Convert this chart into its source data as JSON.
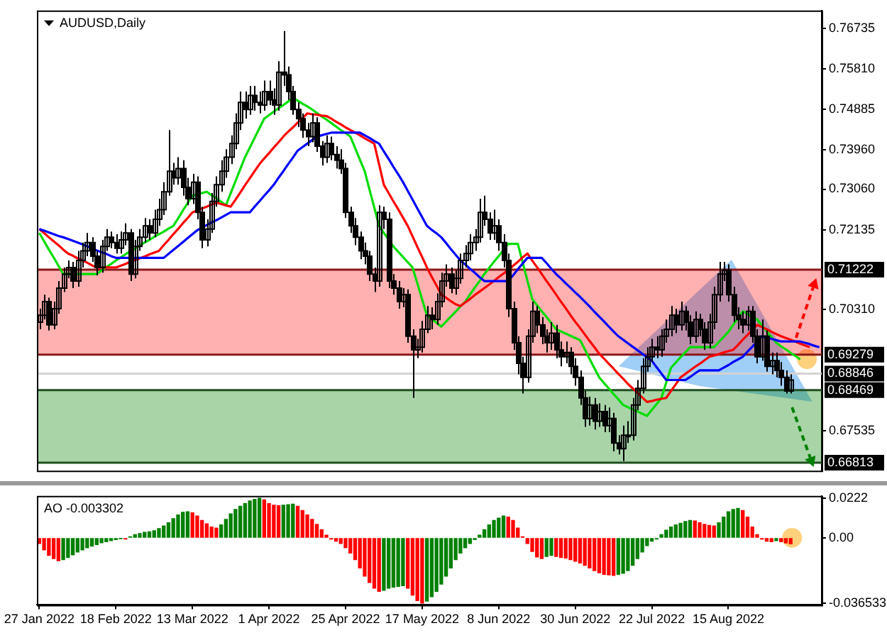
{
  "chart_data": [
    {
      "type": "candlestick",
      "title": "AUDUSD,Daily",
      "categories": [
        null,
        null,
        null,
        null,
        null,
        null,
        null,
        null,
        null,
        null,
        null,
        null,
        null,
        null,
        null,
        null,
        null,
        null,
        null,
        null,
        null,
        null,
        null,
        null,
        null,
        null,
        null,
        null,
        null,
        null,
        null,
        null,
        null,
        null,
        null,
        null,
        null,
        null,
        null,
        null,
        null,
        null,
        null,
        null,
        null,
        null,
        null,
        null,
        null,
        null,
        null,
        null,
        null,
        null,
        null,
        null,
        null,
        null,
        null,
        null,
        null,
        null,
        null,
        null,
        null,
        null,
        null,
        null,
        null,
        null,
        null,
        null,
        null,
        null,
        null,
        null,
        null,
        null,
        null,
        null,
        null,
        null,
        null,
        null,
        null,
        null,
        null,
        null,
        null,
        null,
        null,
        null,
        null,
        null,
        null,
        null,
        null,
        null,
        null,
        null,
        null,
        null,
        null,
        null,
        null,
        null,
        null,
        null,
        null,
        null,
        null,
        null,
        null,
        null,
        null,
        null,
        null,
        null,
        null,
        null,
        null,
        null,
        null,
        null,
        null,
        null,
        null,
        null,
        null,
        null,
        null,
        null,
        null,
        null,
        null,
        null,
        null,
        null,
        null,
        null,
        null,
        null,
        null,
        null,
        null,
        null,
        null,
        null,
        null,
        null,
        null,
        null,
        null,
        null,
        null,
        null,
        null,
        null,
        null,
        null,
        null,
        null,
        null,
        null
      ],
      "ohlc": [
        [
          0.7002,
          0.7033,
          0.6986,
          0.7018
        ],
        [
          0.7018,
          0.7065,
          0.7008,
          0.7049
        ],
        [
          0.7049,
          0.7058,
          0.6983,
          0.6996
        ],
        [
          0.6996,
          0.7049,
          0.6986,
          0.7033
        ],
        [
          0.7033,
          0.7096,
          0.7021,
          0.708
        ],
        [
          0.708,
          0.7127,
          0.7071,
          0.7112
        ],
        [
          0.7112,
          0.7143,
          0.7102,
          0.7127
        ],
        [
          0.7127,
          0.714,
          0.708,
          0.7096
        ],
        [
          0.7096,
          0.7165,
          0.7083,
          0.7143
        ],
        [
          0.7143,
          0.7184,
          0.7127,
          0.7165
        ],
        [
          0.7165,
          0.7206,
          0.7153,
          0.7184
        ],
        [
          0.7184,
          0.7196,
          0.714,
          0.7153
        ],
        [
          0.7153,
          0.7165,
          0.7109,
          0.7127
        ],
        [
          0.7127,
          0.719,
          0.7115,
          0.7175
        ],
        [
          0.7175,
          0.7215,
          0.7165,
          0.7196
        ],
        [
          0.7196,
          0.7209,
          0.7171,
          0.7184
        ],
        [
          0.7184,
          0.7203,
          0.7159,
          0.7171
        ],
        [
          0.7171,
          0.7209,
          0.7159,
          0.719
        ],
        [
          0.719,
          0.7228,
          0.7178,
          0.7206
        ],
        [
          0.7206,
          0.7215,
          0.7096,
          0.7112
        ],
        [
          0.7112,
          0.719,
          0.7102,
          0.7175
        ],
        [
          0.7175,
          0.7215,
          0.7165,
          0.7196
        ],
        [
          0.7196,
          0.724,
          0.7184,
          0.7222
        ],
        [
          0.7222,
          0.7237,
          0.719,
          0.7206
        ],
        [
          0.7206,
          0.7259,
          0.7196,
          0.7237
        ],
        [
          0.7237,
          0.7284,
          0.7222,
          0.7259
        ],
        [
          0.7259,
          0.7322,
          0.7247,
          0.73
        ],
        [
          0.73,
          0.7441,
          0.7291,
          0.7347
        ],
        [
          0.7347,
          0.7366,
          0.7316,
          0.7332
        ],
        [
          0.7332,
          0.7379,
          0.7316,
          0.7353
        ],
        [
          0.7353,
          0.7372,
          0.7291,
          0.731
        ],
        [
          0.731,
          0.7332,
          0.7269,
          0.7284
        ],
        [
          0.7284,
          0.7341,
          0.7272,
          0.7322
        ],
        [
          0.7322,
          0.7335,
          0.7237,
          0.7253
        ],
        [
          0.7253,
          0.7266,
          0.7171,
          0.719
        ],
        [
          0.719,
          0.7237,
          0.7175,
          0.7215
        ],
        [
          0.7215,
          0.7297,
          0.7206,
          0.7278
        ],
        [
          0.7278,
          0.7335,
          0.7266,
          0.7316
        ],
        [
          0.7316,
          0.7372,
          0.73,
          0.7347
        ],
        [
          0.7347,
          0.7397,
          0.7332,
          0.7379
        ],
        [
          0.7379,
          0.7429,
          0.7363,
          0.741
        ],
        [
          0.741,
          0.7479,
          0.7397,
          0.7457
        ],
        [
          0.7457,
          0.7529,
          0.7441,
          0.7504
        ],
        [
          0.7504,
          0.7529,
          0.7467,
          0.7488
        ],
        [
          0.7488,
          0.7542,
          0.7476,
          0.752
        ],
        [
          0.752,
          0.7542,
          0.7485,
          0.7504
        ],
        [
          0.7504,
          0.7529,
          0.7479,
          0.7498
        ],
        [
          0.7498,
          0.7554,
          0.7485,
          0.7529
        ],
        [
          0.7529,
          0.7554,
          0.7498,
          0.751
        ],
        [
          0.751,
          0.7536,
          0.7476,
          0.7498
        ],
        [
          0.7498,
          0.7598,
          0.7485,
          0.7573
        ],
        [
          0.7573,
          0.7667,
          0.7542,
          0.7567
        ],
        [
          0.7567,
          0.7586,
          0.751,
          0.7529
        ],
        [
          0.7529,
          0.7542,
          0.7476,
          0.7488
        ],
        [
          0.7488,
          0.7504,
          0.7448,
          0.7467
        ],
        [
          0.7467,
          0.7479,
          0.7423,
          0.7441
        ],
        [
          0.7441,
          0.7457,
          0.7404,
          0.7426
        ],
        [
          0.7426,
          0.7479,
          0.7413,
          0.7457
        ],
        [
          0.7457,
          0.747,
          0.7391,
          0.7404
        ],
        [
          0.7404,
          0.7416,
          0.736,
          0.7379
        ],
        [
          0.7379,
          0.7429,
          0.7366,
          0.741
        ],
        [
          0.741,
          0.7426,
          0.7372,
          0.7385
        ],
        [
          0.7385,
          0.7404,
          0.7353,
          0.7372
        ],
        [
          0.7372,
          0.7397,
          0.7341,
          0.7353
        ],
        [
          0.7353,
          0.7366,
          0.724,
          0.7253
        ],
        [
          0.7253,
          0.7266,
          0.7206,
          0.7222
        ],
        [
          0.7222,
          0.724,
          0.7178,
          0.7196
        ],
        [
          0.7196,
          0.7209,
          0.7146,
          0.7165
        ],
        [
          0.7165,
          0.7184,
          0.7134,
          0.7153
        ],
        [
          0.7153,
          0.7165,
          0.7096,
          0.7112
        ],
        [
          0.7112,
          0.7127,
          0.7071,
          0.7096
        ],
        [
          0.7096,
          0.7269,
          0.7083,
          0.7253
        ],
        [
          0.7253,
          0.7266,
          0.7215,
          0.7237
        ],
        [
          0.7237,
          0.7253,
          0.708,
          0.7096
        ],
        [
          0.7096,
          0.7112,
          0.7065,
          0.708
        ],
        [
          0.708,
          0.7096,
          0.7033,
          0.7049
        ],
        [
          0.7049,
          0.708,
          0.7036,
          0.7065
        ],
        [
          0.7065,
          0.7077,
          0.6955,
          0.697
        ],
        [
          0.697,
          0.6986,
          0.6829,
          0.6939
        ],
        [
          0.6939,
          0.6964,
          0.692,
          0.6945
        ],
        [
          0.6945,
          0.7005,
          0.6933,
          0.6986
        ],
        [
          0.6986,
          0.7039,
          0.6977,
          0.7018
        ],
        [
          0.7018,
          0.7036,
          0.6986,
          0.7008
        ],
        [
          0.7008,
          0.7068,
          0.6996,
          0.7049
        ],
        [
          0.7049,
          0.7115,
          0.7036,
          0.7096
        ],
        [
          0.7096,
          0.7134,
          0.7083,
          0.7112
        ],
        [
          0.7112,
          0.7127,
          0.7068,
          0.708
        ],
        [
          0.708,
          0.7121,
          0.7065,
          0.7102
        ],
        [
          0.7102,
          0.7159,
          0.709,
          0.7143
        ],
        [
          0.7143,
          0.7178,
          0.7127,
          0.7159
        ],
        [
          0.7159,
          0.7203,
          0.7143,
          0.7184
        ],
        [
          0.7184,
          0.7215,
          0.7165,
          0.7196
        ],
        [
          0.7196,
          0.7284,
          0.7184,
          0.7253
        ],
        [
          0.7253,
          0.7291,
          0.7222,
          0.7237
        ],
        [
          0.7237,
          0.7253,
          0.719,
          0.7206
        ],
        [
          0.7206,
          0.7259,
          0.719,
          0.7222
        ],
        [
          0.7222,
          0.7237,
          0.7165,
          0.7184
        ],
        [
          0.7184,
          0.7203,
          0.7127,
          0.7143
        ],
        [
          0.7143,
          0.7159,
          0.7014,
          0.7033
        ],
        [
          0.7033,
          0.7049,
          0.6939,
          0.6955
        ],
        [
          0.6955,
          0.697,
          0.6883,
          0.6908
        ],
        [
          0.6908,
          0.6923,
          0.6839,
          0.6876
        ],
        [
          0.6876,
          0.6986,
          0.6864,
          0.697
        ],
        [
          0.697,
          0.7049,
          0.6955,
          0.7027
        ],
        [
          0.7027,
          0.7039,
          0.6977,
          0.6996
        ],
        [
          0.6996,
          0.7014,
          0.6952,
          0.697
        ],
        [
          0.697,
          0.6986,
          0.6933,
          0.6955
        ],
        [
          0.6955,
          0.7002,
          0.6939,
          0.6977
        ],
        [
          0.6977,
          0.6996,
          0.692,
          0.6939
        ],
        [
          0.6939,
          0.6958,
          0.6901,
          0.6923
        ],
        [
          0.6923,
          0.6958,
          0.6908,
          0.6933
        ],
        [
          0.6933,
          0.6945,
          0.6883,
          0.6901
        ],
        [
          0.6901,
          0.692,
          0.6857,
          0.6876
        ],
        [
          0.6876,
          0.6892,
          0.6813,
          0.6829
        ],
        [
          0.6829,
          0.6845,
          0.6763,
          0.6782
        ],
        [
          0.6782,
          0.6832,
          0.6766,
          0.6813
        ],
        [
          0.6813,
          0.6829,
          0.6757,
          0.6776
        ],
        [
          0.6776,
          0.6817,
          0.6763,
          0.6798
        ],
        [
          0.6798,
          0.6813,
          0.6751,
          0.6766
        ],
        [
          0.6766,
          0.6807,
          0.6751,
          0.6782
        ],
        [
          0.6782,
          0.6795,
          0.6707,
          0.6726
        ],
        [
          0.6726,
          0.6744,
          0.67,
          0.6713
        ],
        [
          0.6713,
          0.6766,
          0.6685,
          0.6744
        ],
        [
          0.6744,
          0.6776,
          0.6726,
          0.6744
        ],
        [
          0.6744,
          0.6829,
          0.6732,
          0.6813
        ],
        [
          0.6813,
          0.687,
          0.6801,
          0.6851
        ],
        [
          0.6851,
          0.692,
          0.6839,
          0.6901
        ],
        [
          0.6901,
          0.6945,
          0.6889,
          0.6923
        ],
        [
          0.6923,
          0.6964,
          0.6911,
          0.6945
        ],
        [
          0.6945,
          0.697,
          0.692,
          0.6939
        ],
        [
          0.6939,
          0.6986,
          0.6923,
          0.697
        ],
        [
          0.697,
          0.7008,
          0.6955,
          0.6986
        ],
        [
          0.6986,
          0.7039,
          0.697,
          0.7018
        ],
        [
          0.7018,
          0.7033,
          0.6977,
          0.6996
        ],
        [
          0.6996,
          0.7049,
          0.6983,
          0.7027
        ],
        [
          0.7027,
          0.7039,
          0.6983,
          0.7002
        ],
        [
          0.7002,
          0.7018,
          0.6952,
          0.697
        ],
        [
          0.697,
          0.7027,
          0.6955,
          0.7008
        ],
        [
          0.7008,
          0.7021,
          0.697,
          0.6986
        ],
        [
          0.6986,
          0.7002,
          0.6939,
          0.6955
        ],
        [
          0.6955,
          0.7021,
          0.6942,
          0.7002
        ],
        [
          0.7002,
          0.7083,
          0.6986,
          0.7065
        ],
        [
          0.7065,
          0.714,
          0.7049,
          0.7112
        ],
        [
          0.7112,
          0.714,
          0.7096,
          0.7121
        ],
        [
          0.7121,
          0.7134,
          0.7049,
          0.7065
        ],
        [
          0.7065,
          0.7083,
          0.7002,
          0.7018
        ],
        [
          0.7018,
          0.7036,
          0.6986,
          0.7008
        ],
        [
          0.7008,
          0.7027,
          0.6977,
          0.6996
        ],
        [
          0.6996,
          0.7039,
          0.6983,
          0.7027
        ],
        [
          0.7027,
          0.7039,
          0.6955,
          0.697
        ],
        [
          0.697,
          0.6986,
          0.6908,
          0.6923
        ],
        [
          0.6923,
          0.7008,
          0.6914,
          0.697
        ],
        [
          0.697,
          0.6983,
          0.6889,
          0.6901
        ],
        [
          0.6901,
          0.6933,
          0.6883,
          0.6914
        ],
        [
          0.6914,
          0.6933,
          0.6876,
          0.6892
        ],
        [
          0.6892,
          0.6911,
          0.6857,
          0.6876
        ],
        [
          0.6876,
          0.6892,
          0.6839,
          0.6845
        ],
        [
          0.6845,
          0.6883,
          0.6839,
          0.687
        ],
        null,
        null,
        null,
        null,
        null,
        null
      ],
      "series": [
        {
          "type": "line",
          "color": "#0000ff",
          "values": [
            0.7215,
            0.7211,
            0.7207,
            0.7203,
            0.7199,
            0.7196,
            0.7192,
            0.7188,
            0.7184,
            0.718,
            0.7175,
            0.7171,
            0.7166,
            0.7162,
            0.7158,
            0.7153,
            0.7149,
            0.7149,
            0.7149,
            0.7149,
            0.7149,
            0.7149,
            0.7149,
            0.7149,
            0.7149,
            0.7149,
            0.7149,
            0.7158,
            0.7167,
            0.7176,
            0.7185,
            0.7194,
            0.7203,
            0.7212,
            0.7218,
            0.7224,
            0.723,
            0.7235,
            0.7241,
            0.7247,
            0.7253,
            0.7253,
            0.7253,
            0.7253,
            0.7253,
            0.7266,
            0.7278,
            0.7291,
            0.7303,
            0.7316,
            0.7332,
            0.7347,
            0.7363,
            0.7378,
            0.7394,
            0.7402,
            0.741,
            0.7418,
            0.7426,
            0.7429,
            0.7432,
            0.7435,
            0.7435,
            0.7435,
            0.7435,
            0.7435,
            0.7435,
            0.7435,
            0.7429,
            0.7423,
            0.7416,
            0.741,
            0.7392,
            0.7375,
            0.7357,
            0.734,
            0.7322,
            0.7302,
            0.7282,
            0.7262,
            0.7242,
            0.7222,
            0.7213,
            0.7205,
            0.7196,
            0.7183,
            0.7169,
            0.7156,
            0.7143,
            0.7134,
            0.7124,
            0.7115,
            0.7105,
            0.7096,
            0.7096,
            0.7096,
            0.7096,
            0.7096,
            0.7096,
            0.7109,
            0.7123,
            0.7136,
            0.7149,
            0.7149,
            0.7149,
            0.7149,
            0.7137,
            0.7124,
            0.7112,
            0.7102,
            0.7091,
            0.7081,
            0.707,
            0.706,
            0.7049,
            0.7038,
            0.7026,
            0.7015,
            0.7004,
            0.6992,
            0.6981,
            0.697,
            0.6962,
            0.6954,
            0.6946,
            0.6938,
            0.693,
            0.6922,
            0.6914,
            0.6899,
            0.6885,
            0.687,
            0.687,
            0.687,
            0.687,
            0.687,
            0.6877,
            0.6885,
            0.6892,
            0.6892,
            0.6892,
            0.6892,
            0.6892,
            0.6898,
            0.6904,
            0.6911,
            0.6917,
            0.6923,
            0.6935,
            0.6946,
            0.6958,
            0.697,
            0.6967,
            0.6964,
            0.6961,
            0.6958,
            0.6958,
            0.6958,
            0.6958,
            0.6958,
            0.6955,
            0.6952,
            0.6948,
            0.6945
          ]
        },
        {
          "type": "line",
          "color": "#ff0000",
          "values": [
            0.7215,
            0.7206,
            0.7196,
            0.7187,
            0.7178,
            0.7168,
            0.7159,
            0.7154,
            0.7148,
            0.7143,
            0.7138,
            0.7132,
            0.7127,
            0.7127,
            0.7127,
            0.7127,
            0.7127,
            0.7131,
            0.7135,
            0.714,
            0.7144,
            0.7148,
            0.7152,
            0.7157,
            0.7161,
            0.7165,
            0.7178,
            0.719,
            0.7203,
            0.7215,
            0.7228,
            0.724,
            0.7253,
            0.7257,
            0.7262,
            0.7266,
            0.7271,
            0.7275,
            0.7272,
            0.7269,
            0.7266,
            0.7282,
            0.7298,
            0.7315,
            0.7331,
            0.7347,
            0.7363,
            0.7376,
            0.7388,
            0.7401,
            0.7413,
            0.7426,
            0.7437,
            0.7447,
            0.7458,
            0.7468,
            0.7479,
            0.7477,
            0.7476,
            0.7474,
            0.7473,
            0.7467,
            0.746,
            0.7454,
            0.7447,
            0.7441,
            0.7435,
            0.7429,
            0.7422,
            0.7416,
            0.741,
            0.7363,
            0.7316,
            0.7297,
            0.7278,
            0.726,
            0.7241,
            0.7222,
            0.7198,
            0.7174,
            0.7151,
            0.7127,
            0.7106,
            0.7086,
            0.7065,
            0.7058,
            0.705,
            0.7043,
            0.7039,
            0.7047,
            0.7055,
            0.7064,
            0.7072,
            0.708,
            0.7088,
            0.7096,
            0.7105,
            0.7113,
            0.7121,
            0.7131,
            0.714,
            0.715,
            0.7159,
            0.7143,
            0.7128,
            0.7112,
            0.7096,
            0.7081,
            0.7065,
            0.7049,
            0.7034,
            0.7018,
            0.7003,
            0.6989,
            0.6974,
            0.6959,
            0.6945,
            0.693,
            0.6919,
            0.6907,
            0.6896,
            0.6884,
            0.6873,
            0.6861,
            0.6851,
            0.6841,
            0.683,
            0.682,
            0.6822,
            0.6825,
            0.6827,
            0.6829,
            0.6845,
            0.686,
            0.6876,
            0.6884,
            0.6892,
            0.69,
            0.6907,
            0.6915,
            0.6923,
            0.6926,
            0.6929,
            0.6933,
            0.6936,
            0.6939,
            0.695,
            0.6962,
            0.6973,
            0.6985,
            0.6996,
            0.6991,
            0.6986,
            0.698,
            0.6975,
            0.697,
            0.6966,
            0.6962,
            0.6958,
            0.6953,
            0.6949,
            0.6945,
            null,
            null
          ]
        },
        {
          "type": "line",
          "color": "#00dd00",
          "values": [
            0.7206,
            0.7187,
            0.7168,
            0.715,
            0.7131,
            0.7112,
            0.7112,
            0.7112,
            0.7112,
            0.7112,
            0.7112,
            0.7112,
            0.7112,
            0.712,
            0.7128,
            0.7135,
            0.7143,
            0.715,
            0.7157,
            0.7164,
            0.717,
            0.7177,
            0.7184,
            0.719,
            0.7197,
            0.7203,
            0.7209,
            0.7216,
            0.7222,
            0.7239,
            0.7257,
            0.7274,
            0.7291,
            0.7294,
            0.7297,
            0.73,
            0.7292,
            0.7285,
            0.7277,
            0.7269,
            0.7297,
            0.7324,
            0.7352,
            0.7379,
            0.7401,
            0.7423,
            0.7445,
            0.7467,
            0.7475,
            0.7483,
            0.7491,
            0.7498,
            0.7506,
            0.7514,
            0.7508,
            0.7501,
            0.7495,
            0.7488,
            0.748,
            0.7472,
            0.7465,
            0.7457,
            0.7449,
            0.7441,
            0.7434,
            0.7426,
            0.74,
            0.7373,
            0.7347,
            0.7305,
            0.7264,
            0.7222,
            0.7206,
            0.7191,
            0.7175,
            0.7163,
            0.7151,
            0.7139,
            0.7127,
            0.7091,
            0.7054,
            0.7018,
            0.7009,
            0.7001,
            0.6992,
            0.7003,
            0.7015,
            0.7026,
            0.7038,
            0.7049,
            0.7065,
            0.7081,
            0.7096,
            0.7112,
            0.7126,
            0.714,
            0.7153,
            0.7167,
            0.7181,
            0.7181,
            0.7181,
            0.7139,
            0.7097,
            0.7055,
            0.7041,
            0.7027,
            0.7014,
            0.7,
            0.6986,
            0.6981,
            0.6976,
            0.6971,
            0.6966,
            0.6961,
            0.694,
            0.6918,
            0.6897,
            0.6876,
            0.6863,
            0.6851,
            0.6838,
            0.6826,
            0.6813,
            0.6808,
            0.6803,
            0.6798,
            0.6793,
            0.6788,
            0.6802,
            0.6815,
            0.6829,
            0.6864,
            0.6898,
            0.691,
            0.6922,
            0.6933,
            0.6945,
            0.6945,
            0.6945,
            0.6945,
            0.6945,
            0.6945,
            0.6957,
            0.6968,
            0.698,
            0.6996,
            0.7011,
            0.7027,
            0.7021,
            0.7014,
            0.7008,
            0.6995,
            0.6981,
            0.6968,
            0.6955,
            0.6947,
            0.694,
            0.6932,
            0.6925,
            0.6917,
            null,
            null,
            null,
            null
          ]
        }
      ],
      "ylim": [
        0.6663,
        0.7714
      ],
      "yticks": [
        0.76735,
        {
          "value": 0.7581,
          "label": "0.75810"
        },
        0.74885,
        {
          "value": 0.7396,
          "label": "0.73960"
        },
        {
          "value": 0.7306,
          "label": "0.73060"
        },
        0.72135,
        {
          "value": 0.7031,
          "label": "0.70310"
        },
        0.67535
      ],
      "ref_lines": [
        {
          "axis": "y",
          "value": 0.71222,
          "label": "0.71222",
          "color": "#8b1a1a"
        },
        {
          "axis": "y",
          "value": 0.69279,
          "label": "0.69279",
          "color": "#8b1a1a"
        },
        {
          "axis": "y",
          "value": 0.68846,
          "label": "0.68846",
          "color": "#d3d3d3"
        },
        {
          "axis": "y",
          "value": 0.68469,
          "label": "0.68469",
          "color": "#1f4f1f"
        },
        {
          "axis": "y",
          "value": 0.66813,
          "label": "0.66813",
          "color": "#1f4f1f"
        }
      ],
      "bands": [
        {
          "axis": "y",
          "from": 0.69279,
          "to": 0.71222,
          "color": "#ffb0b0"
        },
        {
          "axis": "y",
          "from": 0.66813,
          "to": 0.68469,
          "color": "#a8d4a8"
        }
      ],
      "tick_labels": "y"
    },
    {
      "type": "bar",
      "title": "AO -0.003302",
      "categories": [
        "27 Jan 2022",
        null,
        null,
        null,
        null,
        null,
        null,
        null,
        null,
        null,
        null,
        null,
        null,
        null,
        null,
        null,
        "18 Feb 2022",
        null,
        null,
        null,
        null,
        null,
        null,
        null,
        null,
        null,
        null,
        null,
        null,
        null,
        null,
        null,
        "13 Mar 2022",
        null,
        null,
        null,
        null,
        null,
        null,
        null,
        null,
        null,
        null,
        null,
        null,
        null,
        null,
        null,
        "1 Apr 2022",
        null,
        null,
        null,
        null,
        null,
        null,
        null,
        null,
        null,
        null,
        null,
        null,
        null,
        null,
        null,
        "25 Apr 2022",
        null,
        null,
        null,
        null,
        null,
        null,
        null,
        null,
        null,
        null,
        null,
        null,
        null,
        null,
        null,
        "17 May 2022",
        null,
        null,
        null,
        null,
        null,
        null,
        null,
        null,
        null,
        null,
        null,
        null,
        null,
        null,
        null,
        "8 Jun 2022",
        null,
        null,
        null,
        null,
        null,
        null,
        null,
        null,
        null,
        null,
        null,
        null,
        null,
        null,
        null,
        "30 Jun 2022",
        null,
        null,
        null,
        null,
        null,
        null,
        null,
        null,
        null,
        null,
        null,
        null,
        null,
        null,
        null,
        "22 Jul 2022",
        null,
        null,
        null,
        null,
        null,
        null,
        null,
        null,
        null,
        null,
        null,
        null,
        null,
        null,
        null,
        "15 Aug 2022",
        null,
        null,
        null,
        null,
        null,
        null,
        null,
        null,
        null,
        null,
        null,
        null,
        null,
        null,
        null,
        null,
        null,
        null,
        null
      ],
      "values": [
        -0.0031,
        -0.0067,
        -0.0098,
        -0.0116,
        -0.0128,
        -0.0122,
        -0.011,
        -0.0095,
        -0.0079,
        -0.0067,
        -0.0055,
        -0.0046,
        -0.0037,
        -0.0027,
        -0.0021,
        -0.0015,
        -0.0009,
        -0.0003,
        -0.0006,
        0.0006,
        0.0018,
        0.0024,
        0.0031,
        0.0034,
        0.004,
        0.0052,
        0.0067,
        0.0085,
        0.0107,
        0.0128,
        0.0143,
        0.0146,
        0.014,
        0.0122,
        0.0098,
        0.0079,
        0.0061,
        0.0055,
        0.0073,
        0.0104,
        0.0134,
        0.0159,
        0.0177,
        0.0192,
        0.0207,
        0.0216,
        0.0222,
        0.0213,
        0.0192,
        0.0183,
        0.018,
        0.0183,
        0.0186,
        0.0189,
        0.0177,
        0.0153,
        0.0128,
        0.0104,
        0.0076,
        0.0046,
        0.0015,
        -0.0006,
        -0.0018,
        -0.0031,
        -0.0055,
        -0.0085,
        -0.0122,
        -0.0168,
        -0.0214,
        -0.025,
        -0.0281,
        -0.0299,
        -0.0293,
        -0.0281,
        -0.0275,
        -0.0272,
        -0.0268,
        -0.0281,
        -0.032,
        -0.0351,
        -0.0365,
        -0.0354,
        -0.0329,
        -0.0299,
        -0.0259,
        -0.0214,
        -0.0168,
        -0.0122,
        -0.0085,
        -0.0055,
        -0.0031,
        -0.0009,
        0.0015,
        0.0046,
        0.0073,
        0.0098,
        0.011,
        0.0122,
        0.0116,
        0.0098,
        0.0055,
        0.0006,
        -0.0031,
        -0.0076,
        -0.0107,
        -0.0116,
        -0.0104,
        -0.0098,
        -0.0104,
        -0.011,
        -0.0113,
        -0.0122,
        -0.0131,
        -0.014,
        -0.0153,
        -0.0168,
        -0.0183,
        -0.0195,
        -0.0204,
        -0.0207,
        -0.021,
        -0.0204,
        -0.0198,
        -0.0183,
        -0.0153,
        -0.0116,
        -0.0079,
        -0.0043,
        -0.0018,
        -0.0006,
        0.0018,
        0.0043,
        0.0061,
        0.0073,
        0.0082,
        0.0092,
        0.0098,
        0.0095,
        0.0085,
        0.0076,
        0.007,
        0.0067,
        0.0085,
        0.0116,
        0.0146,
        0.0159,
        0.0165,
        0.0153,
        0.0116,
        0.0061,
        0.0018,
        -0.0006,
        -0.0018,
        -0.0021,
        -0.0015,
        -0.0021,
        -0.0028,
        -0.0033,
        null,
        null,
        null,
        null,
        null,
        null
      ],
      "colors": [
        "#ff0000",
        "#ff0000",
        "#ff0000",
        "#ff0000",
        "#ff0000",
        "#008000",
        "#008000",
        "#008000",
        "#008000",
        "#008000",
        "#008000",
        "#008000",
        "#008000",
        "#008000",
        "#008000",
        "#008000",
        "#008000",
        "#008000",
        "#ff0000",
        "#008000",
        "#008000",
        "#008000",
        "#008000",
        "#008000",
        "#008000",
        "#008000",
        "#008000",
        "#008000",
        "#008000",
        "#008000",
        "#008000",
        "#008000",
        "#ff0000",
        "#ff0000",
        "#ff0000",
        "#ff0000",
        "#ff0000",
        "#ff0000",
        "#008000",
        "#008000",
        "#008000",
        "#008000",
        "#008000",
        "#008000",
        "#008000",
        "#008000",
        "#008000",
        "#ff0000",
        "#ff0000",
        "#ff0000",
        "#ff0000",
        "#008000",
        "#008000",
        "#008000",
        "#ff0000",
        "#ff0000",
        "#ff0000",
        "#ff0000",
        "#ff0000",
        "#ff0000",
        "#ff0000",
        "#ff0000",
        "#ff0000",
        "#ff0000",
        "#ff0000",
        "#ff0000",
        "#ff0000",
        "#ff0000",
        "#ff0000",
        "#ff0000",
        "#ff0000",
        "#ff0000",
        "#008000",
        "#008000",
        "#008000",
        "#008000",
        "#008000",
        "#ff0000",
        "#ff0000",
        "#ff0000",
        "#ff0000",
        "#008000",
        "#008000",
        "#008000",
        "#008000",
        "#008000",
        "#008000",
        "#008000",
        "#008000",
        "#008000",
        "#008000",
        "#008000",
        "#008000",
        "#008000",
        "#008000",
        "#008000",
        "#008000",
        "#008000",
        "#ff0000",
        "#ff0000",
        "#ff0000",
        "#ff0000",
        "#ff0000",
        "#ff0000",
        "#ff0000",
        "#ff0000",
        "#008000",
        "#008000",
        "#ff0000",
        "#ff0000",
        "#ff0000",
        "#ff0000",
        "#ff0000",
        "#ff0000",
        "#ff0000",
        "#ff0000",
        "#ff0000",
        "#ff0000",
        "#ff0000",
        "#ff0000",
        "#ff0000",
        "#008000",
        "#008000",
        "#008000",
        "#008000",
        "#008000",
        "#008000",
        "#008000",
        "#008000",
        "#008000",
        "#008000",
        "#008000",
        "#008000",
        "#008000",
        "#008000",
        "#008000",
        "#008000",
        "#ff0000",
        "#ff0000",
        "#ff0000",
        "#ff0000",
        "#ff0000",
        "#008000",
        "#008000",
        "#008000",
        "#008000",
        "#008000",
        "#ff0000",
        "#ff0000",
        "#ff0000",
        "#ff0000",
        "#ff0000",
        "#ff0000",
        "#ff0000",
        "#008000",
        "#ff0000",
        "#ff0000",
        "#ff0000",
        null,
        null,
        null,
        null,
        null,
        null
      ],
      "ylim": [
        -0.0375,
        0.0235
      ],
      "yticks": [
        0.0222,
        {
          "value": 0,
          "label": "0.00"
        },
        -0.036533
      ]
    }
  ]
}
